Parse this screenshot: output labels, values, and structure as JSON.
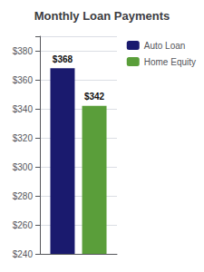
{
  "chart_data": {
    "type": "bar",
    "title": "Monthly Loan Payments",
    "categories": [
      null
    ],
    "series": [
      {
        "name": "Auto Loan",
        "color": "#1a1a6e",
        "values": [
          368
        ],
        "value_labels": [
          "$368"
        ]
      },
      {
        "name": "Home Equity",
        "color": "#5a9e3a",
        "values": [
          342
        ],
        "value_labels": [
          "$342"
        ]
      }
    ],
    "ylim": [
      240,
      390
    ],
    "yticks": [
      {
        "value": 240,
        "label": "$240"
      },
      {
        "value": 260,
        "label": "$260"
      },
      {
        "value": 280,
        "label": "$280"
      },
      {
        "value": 300,
        "label": "$300"
      },
      {
        "value": 320,
        "label": "$320"
      },
      {
        "value": 340,
        "label": "$340"
      },
      {
        "value": 360,
        "label": "$360"
      },
      {
        "value": 380,
        "label": "$380"
      }
    ],
    "grid": true,
    "data_labels": true,
    "legend": "upper right",
    "tick_labels": "y"
  }
}
